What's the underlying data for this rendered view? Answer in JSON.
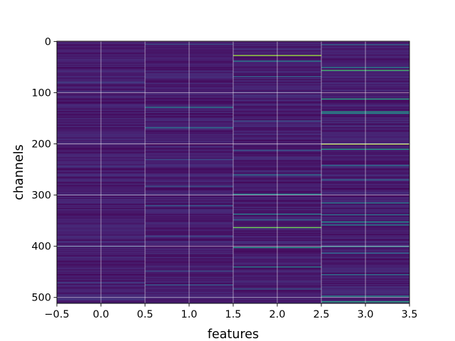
{
  "chart_data": {
    "type": "heatmap",
    "title": "",
    "xlabel": "features",
    "ylabel": "channels",
    "xlim": [
      -0.5,
      3.5
    ],
    "ylim": [
      511.5,
      -0.5
    ],
    "y_inverted": true,
    "grid": true,
    "colormap": "viridis",
    "x_ticks": [
      -0.5,
      0.0,
      0.5,
      1.0,
      1.5,
      2.0,
      2.5,
      3.0,
      3.5
    ],
    "x_tick_labels": [
      "−0.5",
      "0.0",
      "0.5",
      "1.0",
      "1.5",
      "2.0",
      "2.5",
      "3.0",
      "3.5"
    ],
    "y_ticks": [
      0,
      100,
      200,
      300,
      400,
      500
    ],
    "y_tick_labels": [
      "0",
      "100",
      "200",
      "300",
      "400",
      "500"
    ],
    "n_rows": 512,
    "n_cols": 4,
    "background_level": 0.08,
    "columns": [
      {
        "feature": 0,
        "highlights": [
          {
            "channel": 79,
            "level": 0.25
          },
          {
            "channel": 98,
            "level": 0.2
          },
          {
            "channel": 243,
            "level": 0.2
          },
          {
            "channel": 400,
            "level": 0.28
          },
          {
            "channel": 471,
            "level": 0.24
          },
          {
            "channel": 503,
            "level": 0.22
          }
        ]
      },
      {
        "feature": 1,
        "highlights": [
          {
            "channel": 5,
            "level": 0.3
          },
          {
            "channel": 128,
            "level": 0.45
          },
          {
            "channel": 168,
            "level": 0.42
          },
          {
            "channel": 230,
            "level": 0.3
          },
          {
            "channel": 282,
            "level": 0.32
          },
          {
            "channel": 320,
            "level": 0.35
          },
          {
            "channel": 380,
            "level": 0.28
          },
          {
            "channel": 448,
            "level": 0.3
          },
          {
            "channel": 475,
            "level": 0.36
          }
        ]
      },
      {
        "feature": 2,
        "highlights": [
          {
            "channel": 27,
            "level": 0.85
          },
          {
            "channel": 38,
            "level": 0.45
          },
          {
            "channel": 68,
            "level": 0.38
          },
          {
            "channel": 155,
            "level": 0.32
          },
          {
            "channel": 212,
            "level": 0.35
          },
          {
            "channel": 260,
            "level": 0.42
          },
          {
            "channel": 298,
            "level": 0.5
          },
          {
            "channel": 337,
            "level": 0.45
          },
          {
            "channel": 348,
            "level": 0.4
          },
          {
            "channel": 363,
            "level": 0.78
          },
          {
            "channel": 402,
            "level": 0.55
          },
          {
            "channel": 440,
            "level": 0.45
          },
          {
            "channel": 483,
            "level": 0.35
          }
        ]
      },
      {
        "feature": 3,
        "highlights": [
          {
            "channel": 6,
            "level": 0.4
          },
          {
            "channel": 50,
            "level": 0.45
          },
          {
            "channel": 56,
            "level": 0.7
          },
          {
            "channel": 112,
            "level": 0.6
          },
          {
            "channel": 137,
            "level": 0.55
          },
          {
            "channel": 140,
            "level": 0.5
          },
          {
            "channel": 200,
            "level": 0.88
          },
          {
            "channel": 210,
            "level": 0.55
          },
          {
            "channel": 242,
            "level": 0.42
          },
          {
            "channel": 270,
            "level": 0.4
          },
          {
            "channel": 315,
            "level": 0.45
          },
          {
            "channel": 338,
            "level": 0.42
          },
          {
            "channel": 352,
            "level": 0.5
          },
          {
            "channel": 358,
            "level": 0.45
          },
          {
            "channel": 400,
            "level": 0.48
          },
          {
            "channel": 413,
            "level": 0.4
          },
          {
            "channel": 455,
            "level": 0.42
          },
          {
            "channel": 497,
            "level": 0.5
          },
          {
            "channel": 508,
            "level": 0.62
          }
        ]
      }
    ]
  }
}
